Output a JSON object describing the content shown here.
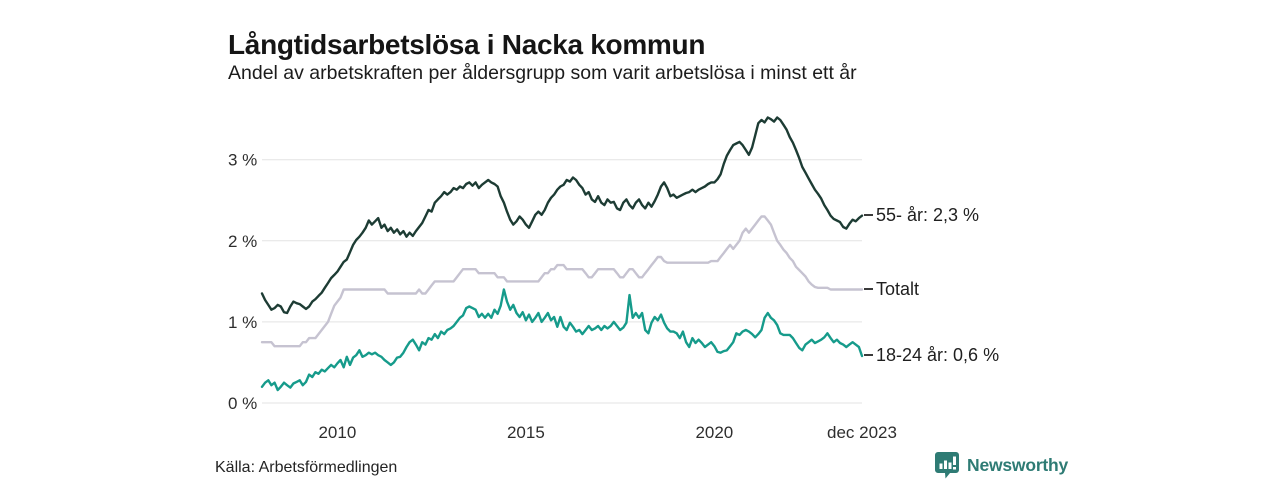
{
  "header": {
    "title": "Långtidsarbetslösa i Nacka kommun",
    "subtitle": "Andel av arbetskraften per åldersgrupp som varit arbetslösa i minst ett år"
  },
  "footer": {
    "source": "Källa: Arbetsförmedlingen",
    "brand": "Newsworthy"
  },
  "colors": {
    "series_55": "#1d3c34",
    "series_total": "#c6c3d1",
    "series_youth": "#169b8b",
    "gridline": "#e3e3e3",
    "axis_text": "#2e2e2e",
    "legend_tick": "#3a3a3a",
    "brand_teal": "#2e7b74"
  },
  "chart_data": {
    "type": "line",
    "title": "Långtidsarbetslösa i Nacka kommun",
    "subtitle": "Andel av arbetskraften per åldersgrupp som varit arbetslösa i minst ett år",
    "unit": "% av arbetskraften",
    "frequency": "monthly",
    "x_start": "2008-01",
    "x_end": "2023-12",
    "ylim": [
      0,
      3.6
    ],
    "grid": "horizontal",
    "legend_position": "right-of-line-ends",
    "y_ticks": [
      {
        "value": 0,
        "label": "0 %"
      },
      {
        "value": 1,
        "label": "1 %"
      },
      {
        "value": 2,
        "label": "2 %"
      },
      {
        "value": 3,
        "label": "3 %"
      }
    ],
    "x_ticks": [
      {
        "month_index": 24,
        "label": "2010"
      },
      {
        "month_index": 84,
        "label": "2015"
      },
      {
        "month_index": 144,
        "label": "2020"
      },
      {
        "month_index": 191,
        "label": "dec 2023"
      }
    ],
    "series": [
      {
        "name": "55- år",
        "end_label": "55- år: 2,3 %",
        "end_value": "2,3 %",
        "color": "#1d3c34",
        "values": [
          1.35,
          1.27,
          1.21,
          1.15,
          1.17,
          1.21,
          1.19,
          1.12,
          1.11,
          1.19,
          1.25,
          1.23,
          1.22,
          1.19,
          1.16,
          1.19,
          1.25,
          1.28,
          1.32,
          1.36,
          1.42,
          1.48,
          1.54,
          1.58,
          1.62,
          1.68,
          1.74,
          1.77,
          1.86,
          1.95,
          2.01,
          2.05,
          2.1,
          2.16,
          2.25,
          2.2,
          2.24,
          2.28,
          2.16,
          2.2,
          2.12,
          2.16,
          2.1,
          2.14,
          2.08,
          2.12,
          2.05,
          2.1,
          2.06,
          2.12,
          2.17,
          2.22,
          2.3,
          2.38,
          2.36,
          2.47,
          2.51,
          2.55,
          2.6,
          2.57,
          2.6,
          2.65,
          2.63,
          2.67,
          2.65,
          2.7,
          2.72,
          2.68,
          2.72,
          2.65,
          2.69,
          2.72,
          2.75,
          2.72,
          2.7,
          2.67,
          2.55,
          2.47,
          2.36,
          2.26,
          2.2,
          2.24,
          2.3,
          2.26,
          2.2,
          2.16,
          2.24,
          2.32,
          2.36,
          2.32,
          2.38,
          2.47,
          2.53,
          2.57,
          2.63,
          2.67,
          2.69,
          2.75,
          2.73,
          2.78,
          2.75,
          2.69,
          2.65,
          2.57,
          2.6,
          2.51,
          2.48,
          2.55,
          2.47,
          2.44,
          2.51,
          2.47,
          2.48,
          2.4,
          2.38,
          2.47,
          2.51,
          2.44,
          2.4,
          2.47,
          2.51,
          2.44,
          2.4,
          2.47,
          2.42,
          2.49,
          2.57,
          2.67,
          2.72,
          2.65,
          2.55,
          2.57,
          2.53,
          2.55,
          2.57,
          2.59,
          2.6,
          2.63,
          2.6,
          2.63,
          2.65,
          2.67,
          2.7,
          2.72,
          2.72,
          2.76,
          2.82,
          2.95,
          3.05,
          3.12,
          3.18,
          3.2,
          3.22,
          3.18,
          3.12,
          3.06,
          3.15,
          3.3,
          3.45,
          3.49,
          3.46,
          3.52,
          3.5,
          3.47,
          3.52,
          3.49,
          3.43,
          3.37,
          3.28,
          3.21,
          3.12,
          3.02,
          2.91,
          2.84,
          2.77,
          2.7,
          2.63,
          2.58,
          2.52,
          2.44,
          2.38,
          2.31,
          2.27,
          2.25,
          2.23,
          2.17,
          2.15,
          2.21,
          2.26,
          2.24,
          2.28,
          2.31
        ]
      },
      {
        "name": "Totalt",
        "end_label": "Totalt",
        "end_value": "1,4 %",
        "color": "#c6c3d1",
        "values": [
          0.75,
          0.75,
          0.75,
          0.75,
          0.7,
          0.7,
          0.7,
          0.7,
          0.7,
          0.7,
          0.7,
          0.7,
          0.7,
          0.75,
          0.75,
          0.8,
          0.8,
          0.8,
          0.85,
          0.9,
          0.95,
          1.0,
          1.1,
          1.2,
          1.25,
          1.3,
          1.4,
          1.4,
          1.4,
          1.4,
          1.4,
          1.4,
          1.4,
          1.4,
          1.4,
          1.4,
          1.4,
          1.4,
          1.4,
          1.4,
          1.35,
          1.35,
          1.35,
          1.35,
          1.35,
          1.35,
          1.35,
          1.35,
          1.35,
          1.35,
          1.4,
          1.35,
          1.35,
          1.4,
          1.45,
          1.5,
          1.5,
          1.5,
          1.5,
          1.5,
          1.5,
          1.5,
          1.55,
          1.6,
          1.65,
          1.65,
          1.65,
          1.65,
          1.65,
          1.6,
          1.6,
          1.6,
          1.6,
          1.6,
          1.6,
          1.55,
          1.55,
          1.55,
          1.5,
          1.5,
          1.5,
          1.5,
          1.5,
          1.5,
          1.5,
          1.5,
          1.5,
          1.5,
          1.5,
          1.55,
          1.6,
          1.6,
          1.65,
          1.65,
          1.7,
          1.7,
          1.7,
          1.65,
          1.65,
          1.65,
          1.65,
          1.65,
          1.65,
          1.6,
          1.55,
          1.55,
          1.6,
          1.65,
          1.65,
          1.65,
          1.65,
          1.65,
          1.65,
          1.6,
          1.55,
          1.55,
          1.6,
          1.65,
          1.65,
          1.6,
          1.55,
          1.55,
          1.6,
          1.65,
          1.7,
          1.75,
          1.8,
          1.8,
          1.75,
          1.73,
          1.73,
          1.73,
          1.73,
          1.73,
          1.73,
          1.73,
          1.73,
          1.73,
          1.73,
          1.73,
          1.73,
          1.73,
          1.73,
          1.75,
          1.75,
          1.75,
          1.8,
          1.85,
          1.9,
          1.95,
          1.9,
          1.95,
          2.0,
          2.1,
          2.15,
          2.1,
          2.15,
          2.2,
          2.25,
          2.3,
          2.3,
          2.25,
          2.2,
          2.1,
          2.0,
          1.95,
          1.89,
          1.85,
          1.79,
          1.75,
          1.68,
          1.64,
          1.6,
          1.56,
          1.5,
          1.46,
          1.43,
          1.42,
          1.42,
          1.42,
          1.42,
          1.4,
          1.4,
          1.4,
          1.4,
          1.4,
          1.4,
          1.4,
          1.4,
          1.4,
          1.4,
          1.4
        ]
      },
      {
        "name": "18-24 år",
        "end_label": "18-24 år: 0,6 %",
        "end_value": "0,6 %",
        "color": "#169b8b",
        "values": [
          0.2,
          0.25,
          0.28,
          0.22,
          0.25,
          0.16,
          0.2,
          0.25,
          0.22,
          0.19,
          0.24,
          0.26,
          0.28,
          0.22,
          0.26,
          0.35,
          0.32,
          0.38,
          0.36,
          0.41,
          0.39,
          0.43,
          0.47,
          0.44,
          0.49,
          0.53,
          0.44,
          0.57,
          0.47,
          0.56,
          0.59,
          0.65,
          0.57,
          0.59,
          0.62,
          0.6,
          0.62,
          0.59,
          0.57,
          0.53,
          0.5,
          0.47,
          0.5,
          0.56,
          0.57,
          0.62,
          0.69,
          0.75,
          0.78,
          0.72,
          0.65,
          0.75,
          0.72,
          0.8,
          0.78,
          0.85,
          0.8,
          0.88,
          0.85,
          0.9,
          0.92,
          0.95,
          1.0,
          1.05,
          1.08,
          1.17,
          1.19,
          1.17,
          1.15,
          1.06,
          1.1,
          1.05,
          1.1,
          1.05,
          1.15,
          1.1,
          1.2,
          1.4,
          1.25,
          1.15,
          1.21,
          1.11,
          1.06,
          1.12,
          1.02,
          1.09,
          1.0,
          1.05,
          1.11,
          1.0,
          1.05,
          1.11,
          1.02,
          1.06,
          0.94,
          1.06,
          0.94,
          0.9,
          0.99,
          0.94,
          0.88,
          0.9,
          0.85,
          0.9,
          0.95,
          0.9,
          0.92,
          0.95,
          0.9,
          0.95,
          0.92,
          0.95,
          1.0,
          0.95,
          0.9,
          0.93,
          0.99,
          1.33,
          1.05,
          1.11,
          1.05,
          1.11,
          0.9,
          0.86,
          0.99,
          1.06,
          1.02,
          1.09,
          0.99,
          0.92,
          0.88,
          0.88,
          0.86,
          0.8,
          0.88,
          0.75,
          0.69,
          0.8,
          0.74,
          0.78,
          0.74,
          0.69,
          0.72,
          0.75,
          0.7,
          0.63,
          0.62,
          0.64,
          0.65,
          0.7,
          0.75,
          0.86,
          0.84,
          0.88,
          0.9,
          0.88,
          0.85,
          0.81,
          0.85,
          0.9,
          1.05,
          1.11,
          1.05,
          1.02,
          0.96,
          0.86,
          0.84,
          0.84,
          0.84,
          0.8,
          0.74,
          0.68,
          0.65,
          0.72,
          0.75,
          0.78,
          0.74,
          0.76,
          0.78,
          0.81,
          0.86,
          0.8,
          0.75,
          0.78,
          0.74,
          0.72,
          0.69,
          0.72,
          0.75,
          0.72,
          0.69,
          0.58
        ]
      }
    ]
  }
}
